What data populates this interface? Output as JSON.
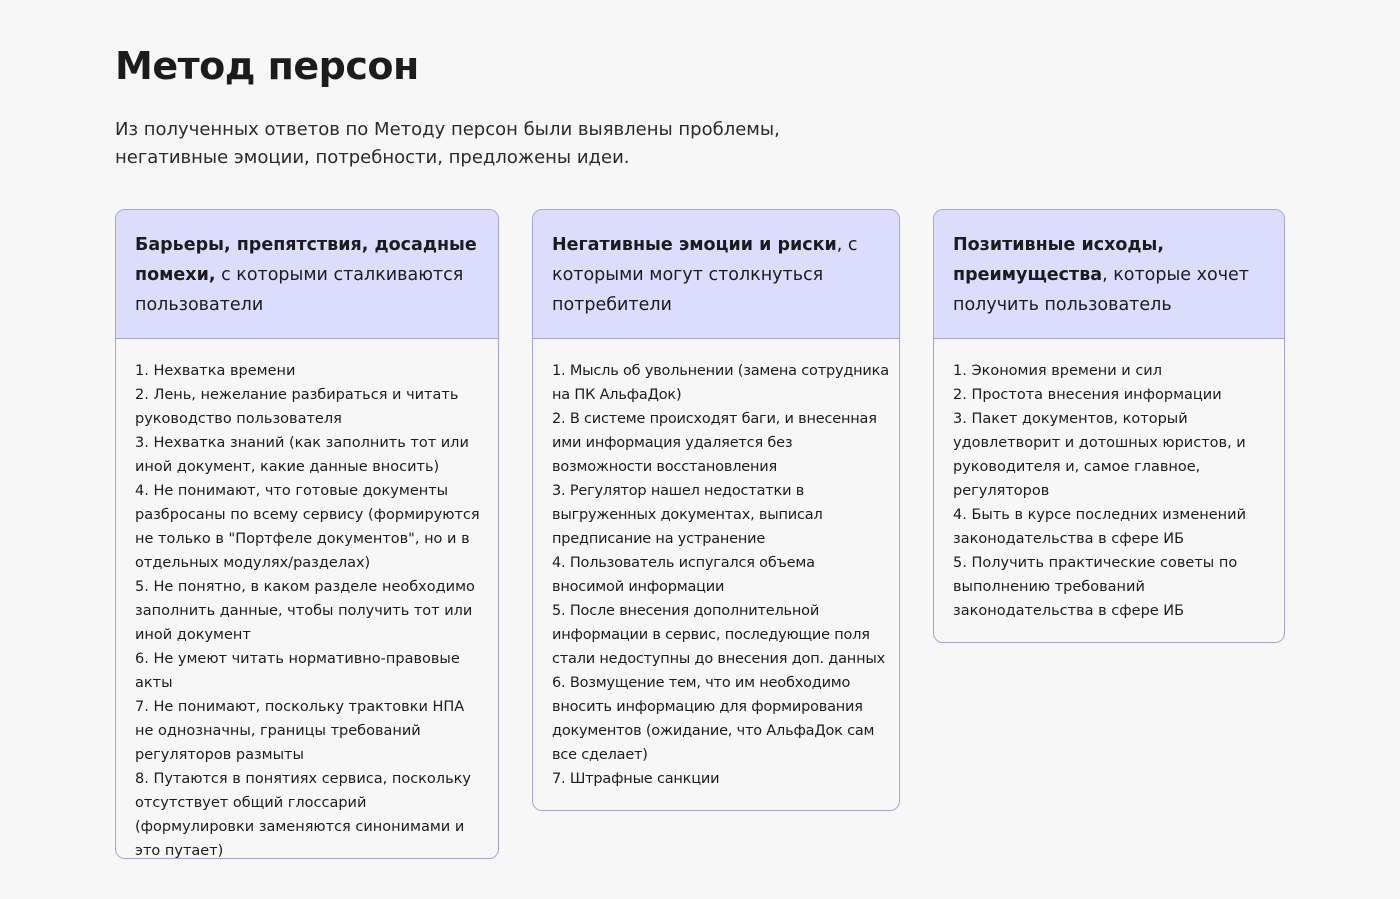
{
  "title": "Метод персон",
  "lead": "Из полученных ответов по Методу персон были выявлены проблемы, негативные эмоции, потребности, предложены идеи.",
  "cards": [
    {
      "head_bold": "Барьеры, препятствия, досадные помехи,",
      "head_rest": " с которыми сталкиваются пользователи",
      "items": [
        "1. Нехватка времени",
        "2. Лень, нежелание разбираться и читать руководство пользователя",
        "3. Нехватка знаний (как заполнить тот или иной документ, какие данные вносить)",
        "4. Не понимают, что готовые документы разбросаны по всему сервису (формируются не только в \"Портфеле документов\", но и в отдельных модулях/разделах)",
        "5. Не понятно, в каком разделе необходимо заполнить данные, чтобы получить тот или иной документ",
        "6. Не умеют читать нормативно-правовые акты",
        "7. Не понимают, поскольку трактовки НПА не однозначны, границы требований регуляторов размыты",
        "8. Путаются в понятиях сервиса, поскольку отсутствует общий глоссарий (формулировки заменяются синонимами и это путает)"
      ]
    },
    {
      "head_bold": "Негативные эмоции и риски",
      "head_rest": ", с которыми могут столкнуться потребители",
      "items": [
        "1. Мысль об увольнении (замена сотрудника на ПК АльфаДок)",
        "2. В системе происходят баги, и внесенная ими информация удаляется без возможности восстановления",
        "3. Регулятор нашел недостатки в выгруженных документах, выписал предписание на устранение",
        "4. Пользователь испугался объема вносимой информации",
        "5. После внесения дополнительной информации в сервис, последующие поля стали недоступны до внесения доп. данных",
        "6. Возмущение тем, что им необходимо вносить информацию для формирования документов (ожидание, что АльфаДок сам все сделает)",
        "7. Штрафные санкции"
      ]
    },
    {
      "head_bold": "Позитивные исходы, преимущества",
      "head_rest": ", которые хочет получить пользователь",
      "items": [
        "1. Экономия времени и сил",
        "2. Простота внесения информации",
        "3. Пакет документов, который удовлетворит и дотошных юристов, и руководителя и, самое главное, регуляторов",
        "4. Быть в курсе последних изменений законодательства в сфере ИБ",
        "5. Получить практические советы по выполнению требований законодательства в сфере ИБ"
      ]
    }
  ],
  "colors": {
    "header_bg": "#dcdcfd",
    "border": "#a3a3e6",
    "page_bg": "#f7f7f7"
  }
}
